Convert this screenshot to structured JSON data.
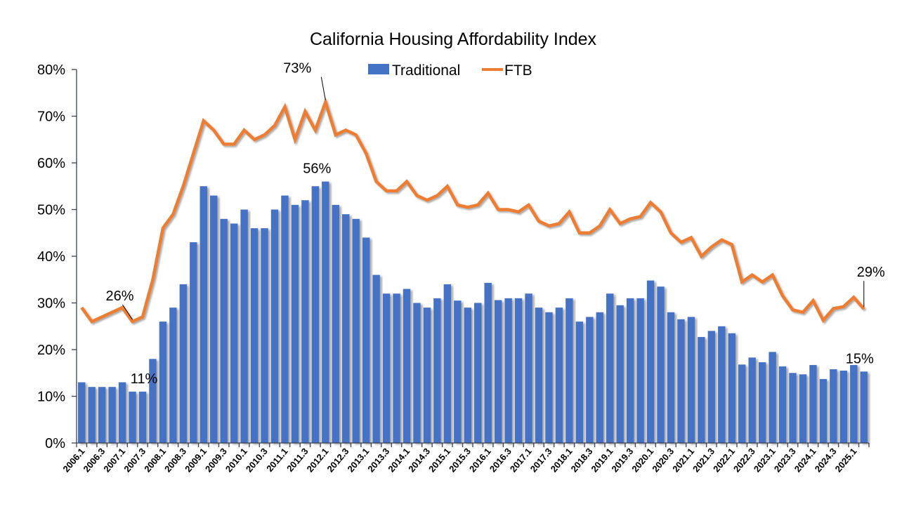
{
  "chart_data": {
    "type": "bar+line",
    "title": "California Housing Affordability Index",
    "xlabel": "",
    "ylabel": "",
    "ylim": [
      0,
      80
    ],
    "y_ticks": [
      "0%",
      "10%",
      "20%",
      "30%",
      "40%",
      "50%",
      "60%",
      "70%",
      "80%"
    ],
    "y_tick_values": [
      0,
      10,
      20,
      30,
      40,
      50,
      60,
      70,
      80
    ],
    "grid": false,
    "legend_position": "top-center",
    "categories": [
      "2006.1",
      "2006.2",
      "2006.3",
      "2006.4",
      "2007.1",
      "2007.2",
      "2007.3",
      "2007.4",
      "2008.1",
      "2008.2",
      "2008.3",
      "2008.4",
      "2009.1",
      "2009.2",
      "2009.3",
      "2009.4",
      "2010.1",
      "2010.2",
      "2010.3",
      "2010.4",
      "2011.1",
      "2011.2",
      "2011.3",
      "2011.4",
      "2012.1",
      "2012.2",
      "2012.3",
      "2012.4",
      "2013.1",
      "2013.2",
      "2013.3",
      "2013.4",
      "2014.1",
      "2014.2",
      "2014.3",
      "2014.4",
      "2015.1",
      "2015.2",
      "2015.3",
      "2015.4",
      "2016.1",
      "2016.2",
      "2016.3",
      "2016.4",
      "2017.1",
      "2017.2",
      "2017.3",
      "2017.4",
      "2018.1",
      "2018.2",
      "2018.3",
      "2018.4",
      "2019.1",
      "2019.2",
      "2019.3",
      "2019.4",
      "2020.1",
      "2020.2",
      "2020.3",
      "2020.4",
      "2021.1",
      "2021.2",
      "2021.3",
      "2021.4",
      "2022.1",
      "2022.2",
      "2022.3",
      "2022.4",
      "2023.1",
      "2023.2",
      "2023.3",
      "2023.4",
      "2024.1",
      "2024.2",
      "2024.3",
      "2024.4",
      "2025.1",
      "2025.2"
    ],
    "x_tick_labels": [
      "2006.1",
      "2006.3",
      "2007.1",
      "2007.3",
      "2008.1",
      "2008.3",
      "2009.1",
      "2009.3",
      "2010.1",
      "2010.3",
      "2011.1",
      "2011.3",
      "2012.1",
      "2012.3",
      "2013.1",
      "2013.3",
      "2014.1",
      "2014.3",
      "2015.1",
      "2015.3",
      "2016.1",
      "2016.3",
      "2017.1",
      "2017.3",
      "2018.1",
      "2018.3",
      "2019.1",
      "2019.3",
      "2020.1",
      "2020.3",
      "2021.1",
      "2021.3",
      "2022.1",
      "2022.3",
      "2023.1",
      "2023.3",
      "2024.1",
      "2024.3",
      "2025.1"
    ],
    "series": [
      {
        "name": "Traditional",
        "type": "bar",
        "color": "#4472C4",
        "values": [
          13,
          12,
          12,
          12,
          13,
          11,
          11,
          18,
          26,
          29,
          34,
          43,
          55,
          53,
          48,
          47,
          50,
          46,
          46,
          50,
          53,
          51,
          52,
          55,
          56,
          51,
          49,
          48,
          44,
          36,
          32,
          32,
          33,
          30,
          29,
          31,
          34,
          30.5,
          29,
          30,
          34.3,
          30.6,
          31,
          31,
          32,
          29,
          28,
          29,
          31,
          26,
          27,
          28,
          32,
          29.5,
          31,
          31,
          34.8,
          33.5,
          28,
          26.5,
          27,
          22.7,
          24,
          25,
          23.5,
          16.8,
          18.3,
          17.3,
          19.5,
          16.4,
          15,
          14.7,
          16.7,
          13.7,
          15.8,
          15.5,
          16.7,
          15.3
        ]
      },
      {
        "name": "FTB",
        "type": "line",
        "color": "#ED7D31",
        "values": [
          29,
          26,
          27,
          28,
          29,
          26,
          27,
          35,
          46,
          49,
          55,
          62,
          69,
          67,
          64,
          64,
          67,
          65,
          66,
          68,
          72,
          65,
          71,
          67,
          73,
          66,
          67,
          66,
          62,
          56,
          54,
          54,
          56,
          53,
          52,
          53,
          55,
          51,
          50.5,
          51,
          53.5,
          50,
          50,
          49.5,
          51,
          47.5,
          46.5,
          47,
          49.5,
          45,
          45,
          46.5,
          50,
          47,
          48,
          48.5,
          51.5,
          49.5,
          45,
          43,
          44,
          40,
          42,
          43.5,
          42.5,
          34.5,
          36,
          34.5,
          36,
          31.5,
          28.5,
          28,
          30.5,
          26.3,
          28.8,
          29.2,
          31.2,
          28.7
        ]
      }
    ],
    "annotations": [
      {
        "series": "FTB",
        "category": "2007.2",
        "text": "26%"
      },
      {
        "series": "FTB",
        "category": "2012.1",
        "text": "73%"
      },
      {
        "series": "FTB",
        "category": "2025.2",
        "text": "29%"
      },
      {
        "series": "Traditional",
        "category": "2007.3",
        "text": "11%"
      },
      {
        "series": "Traditional",
        "category": "2012.1",
        "text": "56%"
      },
      {
        "series": "Traditional",
        "category": "2025.2",
        "text": "15%"
      }
    ]
  }
}
